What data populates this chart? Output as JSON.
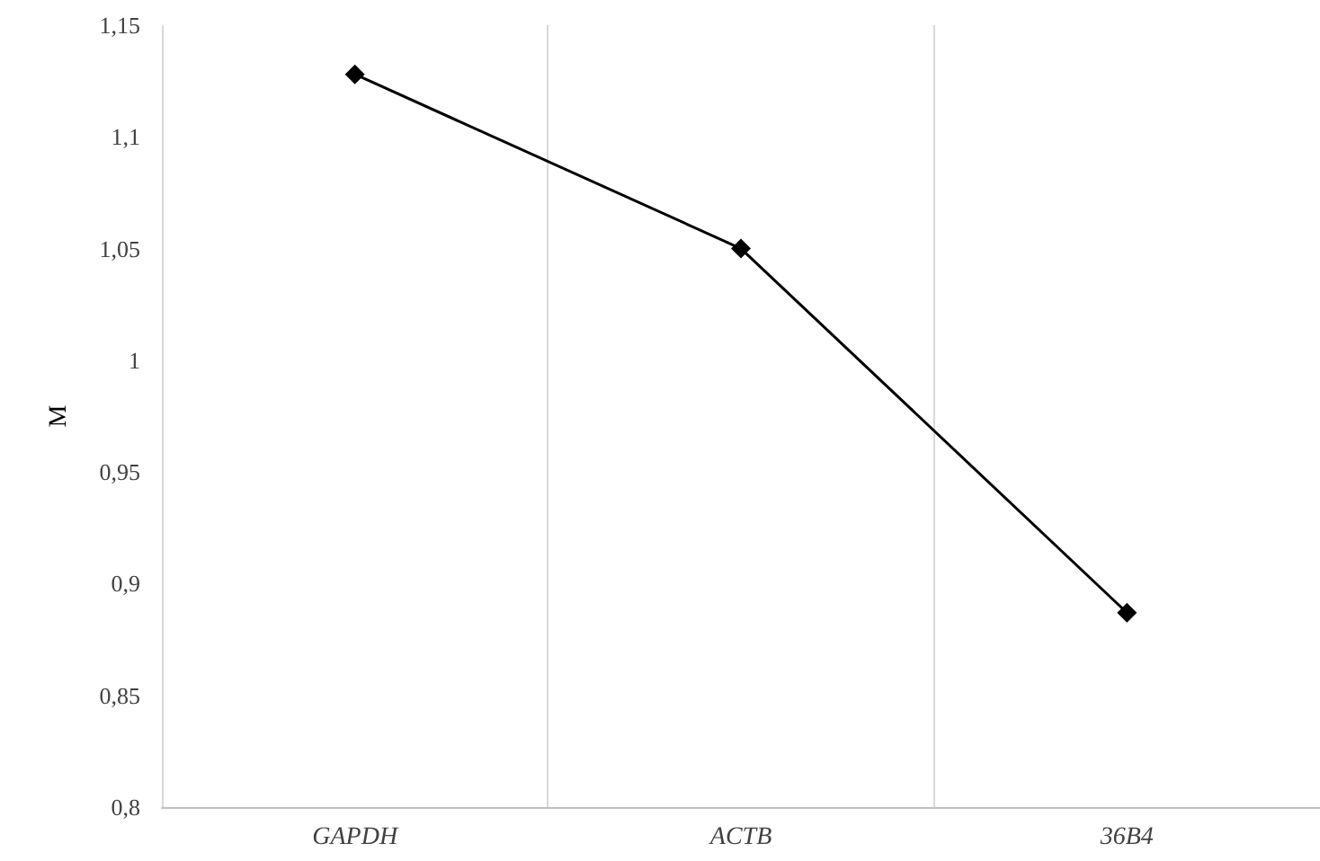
{
  "chart_data": {
    "type": "line",
    "ylabel": "M",
    "categories": [
      "GAPDH",
      "ACTB",
      "36B4"
    ],
    "series": [
      {
        "color": "#000000",
        "values": [
          1.128,
          1.05,
          0.887
        ]
      }
    ],
    "ylim": [
      0.8,
      1.15
    ],
    "yticks": [
      {
        "value": 0.8,
        "label": "0,8"
      },
      {
        "value": 0.85,
        "label": "0,85"
      },
      {
        "value": 0.9,
        "label": "0,9"
      },
      {
        "value": 0.95,
        "label": "0,95"
      },
      {
        "value": 1,
        "label": "1"
      },
      {
        "value": 1.05,
        "label": "1,05"
      },
      {
        "value": 1.1,
        "label": "1,1"
      },
      {
        "value": 1.15,
        "label": "1,15"
      }
    ],
    "grid": "x",
    "marker": "diamond",
    "line_style": "solid"
  }
}
